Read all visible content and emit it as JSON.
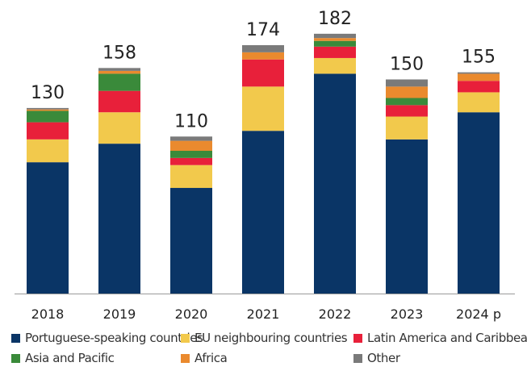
{
  "chart_data": {
    "type": "bar",
    "stacked": true,
    "title": "",
    "xlabel": "",
    "ylabel": "",
    "ylim": [
      0,
      200
    ],
    "grid": false,
    "legend_position": "bottom",
    "categories": [
      "2018",
      "2019",
      "2020",
      "2021",
      "2022",
      "2023",
      "2024 p"
    ],
    "totals": [
      130,
      158,
      110,
      174,
      182,
      150,
      155
    ],
    "series": [
      {
        "name": "Portuguese-speaking countries",
        "color": "#0a3566",
        "values": [
          92,
          105,
          74,
          114,
          154,
          108,
          127
        ]
      },
      {
        "name": "EU neighbouring countries",
        "color": "#f2c94c",
        "values": [
          16,
          22,
          16,
          31,
          11,
          16,
          14
        ]
      },
      {
        "name": "Latin America and Caribbean",
        "color": "#e8203a",
        "values": [
          12,
          15,
          5,
          19,
          8,
          8,
          8
        ]
      },
      {
        "name": "Asia and Pacific",
        "color": "#3a8a3a",
        "values": [
          8,
          12,
          5,
          0,
          4,
          5,
          0
        ]
      },
      {
        "name": "Africa",
        "color": "#ea8a2e",
        "values": [
          1,
          2,
          7,
          5,
          2,
          8,
          5
        ]
      },
      {
        "name": "Other",
        "color": "#7a7a7a",
        "values": [
          1,
          2,
          3,
          5,
          3,
          5,
          1
        ]
      }
    ]
  }
}
